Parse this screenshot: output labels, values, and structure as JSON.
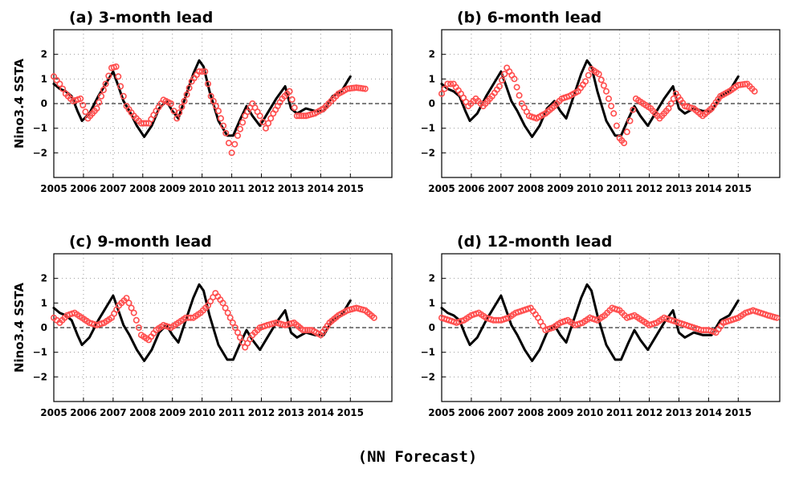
{
  "footer": "(NN Forecast)",
  "ylabel": "Nino3.4 SSTA",
  "colors": {
    "observed": "#000000",
    "forecast": "#ff4d4d",
    "grid": "#9a9a9a"
  },
  "chart_data": [
    {
      "type": "line",
      "title": "(a) 3-month lead",
      "ylabel": "Nino3.4 SSTA",
      "xlim": [
        2005,
        2016.4
      ],
      "ylim": [
        -3,
        3
      ],
      "xticks": [
        2005,
        2006,
        2007,
        2008,
        2009,
        2010,
        2011,
        2012,
        2013,
        2014,
        2015
      ],
      "xtick_labels": [
        "2005",
        "2006",
        "2007",
        "2008",
        "2009",
        "2010",
        "2011",
        "2012",
        "2013",
        "2014",
        "2015"
      ],
      "yticks": [
        -2,
        -1,
        0,
        1,
        2
      ],
      "ytick_labels": [
        "−2",
        "−1",
        "0",
        "1",
        "2"
      ],
      "grid": true,
      "series": [
        {
          "style": "solid-line",
          "color": "#000000",
          "x": [
            2005.0,
            2005.2,
            2005.4,
            2005.6,
            2005.8,
            2005.95,
            2006.2,
            2006.5,
            2006.8,
            2007.0,
            2007.15,
            2007.35,
            2007.55,
            2007.8,
            2008.05,
            2008.3,
            2008.55,
            2008.8,
            2009.0,
            2009.2,
            2009.45,
            2009.7,
            2009.9,
            2010.05,
            2010.25,
            2010.55,
            2010.85,
            2011.05,
            2011.3,
            2011.5,
            2011.7,
            2011.95,
            2012.2,
            2012.5,
            2012.8,
            2013.0,
            2013.2,
            2013.5,
            2013.8,
            2014.1,
            2014.4,
            2014.7,
            2015.0
          ],
          "y": [
            0.8,
            0.6,
            0.5,
            0.3,
            -0.3,
            -0.7,
            -0.4,
            0.3,
            0.9,
            1.3,
            0.8,
            0.1,
            -0.3,
            -0.9,
            -1.35,
            -0.9,
            -0.2,
            0.1,
            -0.3,
            -0.6,
            0.3,
            1.2,
            1.75,
            1.5,
            0.5,
            -0.7,
            -1.3,
            -1.3,
            -0.6,
            -0.1,
            -0.5,
            -0.9,
            -0.4,
            0.2,
            0.7,
            -0.2,
            -0.4,
            -0.2,
            -0.3,
            -0.3,
            0.3,
            0.5,
            1.1
          ]
        },
        {
          "style": "circles",
          "color": "#ff4d4d",
          "x": [
            2005.0,
            2005.2,
            2005.4,
            2005.65,
            2005.9,
            2006.15,
            2006.45,
            2006.75,
            2006.95,
            2007.1,
            2007.25,
            2007.45,
            2007.7,
            2007.95,
            2008.2,
            2008.45,
            2008.7,
            2008.95,
            2009.15,
            2009.4,
            2009.65,
            2009.9,
            2010.1,
            2010.3,
            2010.55,
            2010.8,
            2011.0,
            2011.2,
            2011.45,
            2011.7,
            2011.95,
            2012.15,
            2012.4,
            2012.7,
            2012.95,
            2013.2,
            2013.5,
            2013.8,
            2014.1,
            2014.35,
            2014.6,
            2014.9,
            2015.2,
            2015.5
          ],
          "y": [
            1.1,
            0.8,
            0.4,
            0.1,
            0.2,
            -0.6,
            -0.2,
            0.8,
            1.45,
            1.5,
            0.7,
            -0.1,
            -0.5,
            -0.8,
            -0.8,
            -0.3,
            0.15,
            0.0,
            -0.6,
            0.1,
            0.9,
            1.3,
            1.3,
            0.3,
            -0.3,
            -1.2,
            -2.0,
            -1.3,
            -0.5,
            0.0,
            -0.5,
            -1.0,
            -0.4,
            0.2,
            0.5,
            -0.5,
            -0.5,
            -0.4,
            -0.2,
            0.1,
            0.4,
            0.6,
            0.65,
            0.6
          ]
        }
      ]
    },
    {
      "type": "line",
      "title": "(b) 6-month lead",
      "ylabel": "",
      "xlim": [
        2005,
        2016.4
      ],
      "ylim": [
        -3,
        3
      ],
      "xticks": [
        2005,
        2006,
        2007,
        2008,
        2009,
        2010,
        2011,
        2012,
        2013,
        2014,
        2015
      ],
      "xtick_labels": [
        "2005",
        "2006",
        "2007",
        "2008",
        "2009",
        "2010",
        "2011",
        "2012",
        "2013",
        "2014",
        "2015"
      ],
      "yticks": [
        -2,
        -1,
        0,
        1,
        2
      ],
      "ytick_labels": [
        "−2",
        "−1",
        "0",
        "1",
        "2"
      ],
      "grid": true,
      "series": [
        {
          "style": "solid-line",
          "color": "#000000",
          "x": [
            2005.0,
            2005.2,
            2005.4,
            2005.6,
            2005.8,
            2005.95,
            2006.2,
            2006.5,
            2006.8,
            2007.0,
            2007.15,
            2007.35,
            2007.55,
            2007.8,
            2008.05,
            2008.3,
            2008.55,
            2008.8,
            2009.0,
            2009.2,
            2009.45,
            2009.7,
            2009.9,
            2010.05,
            2010.25,
            2010.55,
            2010.85,
            2011.05,
            2011.3,
            2011.5,
            2011.7,
            2011.95,
            2012.2,
            2012.5,
            2012.8,
            2013.0,
            2013.2,
            2013.5,
            2013.8,
            2014.1,
            2014.4,
            2014.7,
            2015.0
          ],
          "y": [
            0.8,
            0.6,
            0.5,
            0.3,
            -0.3,
            -0.7,
            -0.4,
            0.3,
            0.9,
            1.3,
            0.8,
            0.1,
            -0.3,
            -0.9,
            -1.35,
            -0.9,
            -0.2,
            0.1,
            -0.3,
            -0.6,
            0.3,
            1.2,
            1.75,
            1.5,
            0.5,
            -0.7,
            -1.3,
            -1.3,
            -0.6,
            -0.1,
            -0.5,
            -0.9,
            -0.4,
            0.2,
            0.7,
            -0.2,
            -0.4,
            -0.2,
            -0.3,
            -0.3,
            0.3,
            0.5,
            1.1
          ]
        },
        {
          "style": "circles",
          "color": "#ff4d4d",
          "x": [
            2005.0,
            2005.2,
            2005.4,
            2005.65,
            2005.9,
            2006.15,
            2006.4,
            2006.7,
            2006.95,
            2007.2,
            2007.45,
            2007.7,
            2007.95,
            2008.2,
            2008.5,
            2008.8,
            2009.05,
            2009.3,
            2009.6,
            2009.85,
            2010.05,
            2010.3,
            2010.55,
            2010.8,
            2011.0,
            2011.15,
            2011.35,
            2011.55,
            2011.8,
            2012.05,
            2012.35,
            2012.65,
            2012.9,
            2013.2,
            2013.5,
            2013.8,
            2014.1,
            2014.4,
            2014.7,
            2015.0,
            2015.3,
            2015.55
          ],
          "y": [
            0.4,
            0.8,
            0.8,
            0.4,
            -0.1,
            0.2,
            -0.1,
            0.3,
            0.7,
            1.45,
            1.0,
            0.0,
            -0.5,
            -0.6,
            -0.4,
            -0.1,
            0.2,
            0.3,
            0.5,
            0.9,
            1.4,
            1.2,
            0.5,
            -0.4,
            -1.4,
            -1.6,
            -0.7,
            0.2,
            0.0,
            -0.2,
            -0.6,
            -0.2,
            0.4,
            -0.1,
            -0.2,
            -0.5,
            -0.2,
            0.3,
            0.5,
            0.75,
            0.8,
            0.5
          ]
        }
      ]
    },
    {
      "type": "line",
      "title": "(c) 9-month lead",
      "ylabel": "Nino3.4 SSTA",
      "xlim": [
        2005,
        2016.4
      ],
      "ylim": [
        -3,
        3
      ],
      "xticks": [
        2005,
        2006,
        2007,
        2008,
        2009,
        2010,
        2011,
        2012,
        2013,
        2014,
        2015
      ],
      "xtick_labels": [
        "2005",
        "2006",
        "2007",
        "2008",
        "2009",
        "2010",
        "2011",
        "2012",
        "2013",
        "2014",
        "2015"
      ],
      "yticks": [
        -2,
        -1,
        0,
        1,
        2
      ],
      "ytick_labels": [
        "−2",
        "−1",
        "0",
        "1",
        "2"
      ],
      "grid": true,
      "series": [
        {
          "style": "solid-line",
          "color": "#000000",
          "x": [
            2005.0,
            2005.2,
            2005.4,
            2005.6,
            2005.8,
            2005.95,
            2006.2,
            2006.5,
            2006.8,
            2007.0,
            2007.15,
            2007.35,
            2007.55,
            2007.8,
            2008.05,
            2008.3,
            2008.55,
            2008.8,
            2009.0,
            2009.2,
            2009.45,
            2009.7,
            2009.9,
            2010.05,
            2010.25,
            2010.55,
            2010.85,
            2011.05,
            2011.3,
            2011.5,
            2011.7,
            2011.95,
            2012.2,
            2012.5,
            2012.8,
            2013.0,
            2013.2,
            2013.5,
            2013.8,
            2014.1,
            2014.4,
            2014.7,
            2015.0
          ],
          "y": [
            0.8,
            0.6,
            0.5,
            0.3,
            -0.3,
            -0.7,
            -0.4,
            0.3,
            0.9,
            1.3,
            0.8,
            0.1,
            -0.3,
            -0.9,
            -1.35,
            -0.9,
            -0.2,
            0.1,
            -0.3,
            -0.6,
            0.3,
            1.2,
            1.75,
            1.5,
            0.5,
            -0.7,
            -1.3,
            -1.3,
            -0.6,
            -0.1,
            -0.5,
            -0.9,
            -0.4,
            0.2,
            0.7,
            -0.2,
            -0.4,
            -0.2,
            -0.3,
            -0.3,
            0.3,
            0.5,
            1.1
          ]
        },
        {
          "style": "circles",
          "color": "#ff4d4d",
          "x": [
            2005.0,
            2005.2,
            2005.45,
            2005.7,
            2005.95,
            2006.2,
            2006.45,
            2006.7,
            2006.95,
            2007.2,
            2007.45,
            2007.7,
            2007.95,
            2008.2,
            2008.45,
            2008.7,
            2008.95,
            2009.2,
            2009.45,
            2009.7,
            2009.95,
            2010.2,
            2010.45,
            2010.7,
            2010.95,
            2011.2,
            2011.45,
            2011.7,
            2011.95,
            2012.2,
            2012.5,
            2012.8,
            2013.1,
            2013.4,
            2013.7,
            2014.0,
            2014.3,
            2014.6,
            2014.9,
            2015.2,
            2015.5,
            2015.8
          ],
          "y": [
            0.4,
            0.2,
            0.5,
            0.6,
            0.4,
            0.2,
            0.1,
            0.2,
            0.4,
            0.9,
            1.2,
            0.6,
            -0.3,
            -0.5,
            -0.1,
            0.1,
            0.0,
            0.2,
            0.4,
            0.4,
            0.6,
            0.9,
            1.4,
            1.0,
            0.4,
            -0.2,
            -0.8,
            -0.3,
            0.0,
            0.1,
            0.2,
            0.1,
            0.2,
            -0.1,
            -0.1,
            -0.3,
            0.2,
            0.5,
            0.7,
            0.8,
            0.7,
            0.4
          ]
        }
      ]
    },
    {
      "type": "line",
      "title": "(d) 12-month lead",
      "ylabel": "",
      "xlim": [
        2005,
        2016.4
      ],
      "ylim": [
        -3,
        3
      ],
      "xticks": [
        2005,
        2006,
        2007,
        2008,
        2009,
        2010,
        2011,
        2012,
        2013,
        2014,
        2015
      ],
      "xtick_labels": [
        "2005",
        "2006",
        "2007",
        "2008",
        "2009",
        "2010",
        "2011",
        "2012",
        "2013",
        "2014",
        "2015"
      ],
      "yticks": [
        -2,
        -1,
        0,
        1,
        2
      ],
      "ytick_labels": [
        "−2",
        "−1",
        "0",
        "1",
        "2"
      ],
      "grid": true,
      "series": [
        {
          "style": "solid-line",
          "color": "#000000",
          "x": [
            2005.0,
            2005.2,
            2005.4,
            2005.6,
            2005.8,
            2005.95,
            2006.2,
            2006.5,
            2006.8,
            2007.0,
            2007.15,
            2007.35,
            2007.55,
            2007.8,
            2008.05,
            2008.3,
            2008.55,
            2008.8,
            2009.0,
            2009.2,
            2009.45,
            2009.7,
            2009.9,
            2010.05,
            2010.25,
            2010.55,
            2010.85,
            2011.05,
            2011.3,
            2011.5,
            2011.7,
            2011.95,
            2012.2,
            2012.5,
            2012.8,
            2013.0,
            2013.2,
            2013.5,
            2013.8,
            2014.1,
            2014.4,
            2014.7,
            2015.0
          ],
          "y": [
            0.8,
            0.6,
            0.5,
            0.3,
            -0.3,
            -0.7,
            -0.4,
            0.3,
            0.9,
            1.3,
            0.8,
            0.1,
            -0.3,
            -0.9,
            -1.35,
            -0.9,
            -0.2,
            0.1,
            -0.3,
            -0.6,
            0.3,
            1.2,
            1.75,
            1.5,
            0.5,
            -0.7,
            -1.3,
            -1.3,
            -0.6,
            -0.1,
            -0.5,
            -0.9,
            -0.4,
            0.2,
            0.7,
            -0.2,
            -0.4,
            -0.2,
            -0.3,
            -0.3,
            0.3,
            0.5,
            1.1
          ]
        },
        {
          "style": "circles",
          "color": "#ff4d4d",
          "x": [
            2005.0,
            2005.25,
            2005.5,
            2005.75,
            2006.0,
            2006.25,
            2006.5,
            2006.75,
            2007.0,
            2007.25,
            2007.5,
            2007.75,
            2008.0,
            2008.25,
            2008.5,
            2008.75,
            2009.0,
            2009.25,
            2009.5,
            2009.75,
            2010.0,
            2010.25,
            2010.5,
            2010.75,
            2011.0,
            2011.25,
            2011.5,
            2011.75,
            2012.0,
            2012.25,
            2012.5,
            2012.75,
            2013.0,
            2013.25,
            2013.5,
            2013.75,
            2014.0,
            2014.25,
            2014.5,
            2014.75,
            2015.0,
            2015.25,
            2015.5,
            2015.75,
            2016.0,
            2016.3
          ],
          "y": [
            0.4,
            0.3,
            0.2,
            0.3,
            0.5,
            0.6,
            0.4,
            0.3,
            0.3,
            0.4,
            0.6,
            0.7,
            0.8,
            0.4,
            -0.1,
            0.0,
            0.2,
            0.3,
            0.1,
            0.2,
            0.4,
            0.3,
            0.5,
            0.8,
            0.7,
            0.4,
            0.5,
            0.3,
            0.1,
            0.2,
            0.4,
            0.3,
            0.2,
            0.1,
            0.0,
            -0.1,
            -0.1,
            -0.2,
            0.2,
            0.3,
            0.4,
            0.6,
            0.7,
            0.6,
            0.5,
            0.4
          ]
        }
      ]
    }
  ]
}
